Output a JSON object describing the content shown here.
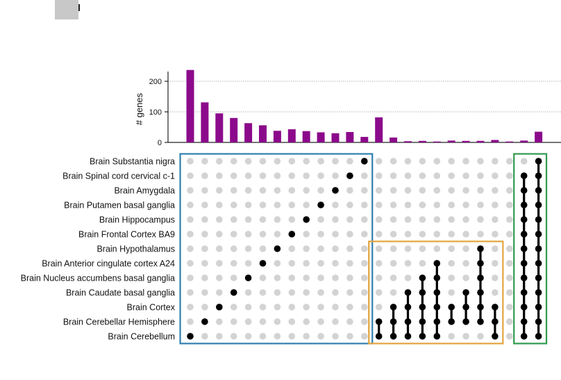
{
  "chart_data": {
    "type": "bar",
    "ylabel": "# genes",
    "y_ticks": [
      0,
      100,
      200
    ],
    "ylim": [
      0,
      250
    ],
    "grid": true,
    "sets": [
      "Brain Substantia nigra",
      "Brain Spinal cord cervical c-1",
      "Brain Amygdala",
      "Brain Putamen basal ganglia",
      "Brain Hippocampus",
      "Brain Frontal Cortex BA9",
      "Brain Hypothalamus",
      "Brain Anterior cingulate cortex A24",
      "Brain Nucleus accumbens basal ganglia",
      "Brain Caudate basal ganglia",
      "Brain Cortex",
      "Brain Cerebellar Hemisphere",
      "Brain Cerebellum"
    ],
    "values": [
      237,
      131,
      95,
      80,
      63,
      56,
      38,
      43,
      37,
      33,
      30,
      34,
      18,
      82,
      16,
      4,
      5,
      3,
      6,
      5,
      5,
      8,
      3,
      6,
      35
    ],
    "intersections": [
      [
        12
      ],
      [
        11
      ],
      [
        10
      ],
      [
        9
      ],
      [
        8
      ],
      [
        7
      ],
      [
        6
      ],
      [
        5
      ],
      [
        4
      ],
      [
        3
      ],
      [
        2
      ],
      [
        1
      ],
      [
        0
      ],
      [
        11,
        12
      ],
      [
        10,
        11,
        12
      ],
      [
        9,
        10,
        11,
        12
      ],
      [
        8,
        9,
        10,
        11,
        12
      ],
      [
        7,
        8,
        9,
        10,
        11,
        12
      ],
      [
        10,
        11
      ],
      [
        9,
        10,
        11
      ],
      [
        6,
        7,
        8,
        9,
        10,
        11
      ],
      [
        10,
        11,
        12
      ],
      [],
      [
        1,
        2,
        3,
        4,
        5,
        6,
        7,
        8,
        9,
        10,
        11,
        12
      ],
      [
        0,
        1,
        2,
        3,
        4,
        5,
        6,
        7,
        8,
        9,
        10,
        11,
        12
      ]
    ],
    "bar_color": "#8b0a8b",
    "dot_active_color": "#000000",
    "dot_inactive_color": "#d3d3d3",
    "highlight_boxes": [
      {
        "color": "#2e7fae",
        "columns": [
          0,
          12
        ],
        "rows": [
          0,
          12
        ]
      },
      {
        "color": "#e2a43d",
        "columns": [
          13,
          21
        ],
        "rows": [
          6,
          12
        ]
      },
      {
        "color": "#2f9a4f",
        "columns": [
          23,
          24
        ],
        "rows": [
          0,
          12
        ]
      }
    ]
  }
}
